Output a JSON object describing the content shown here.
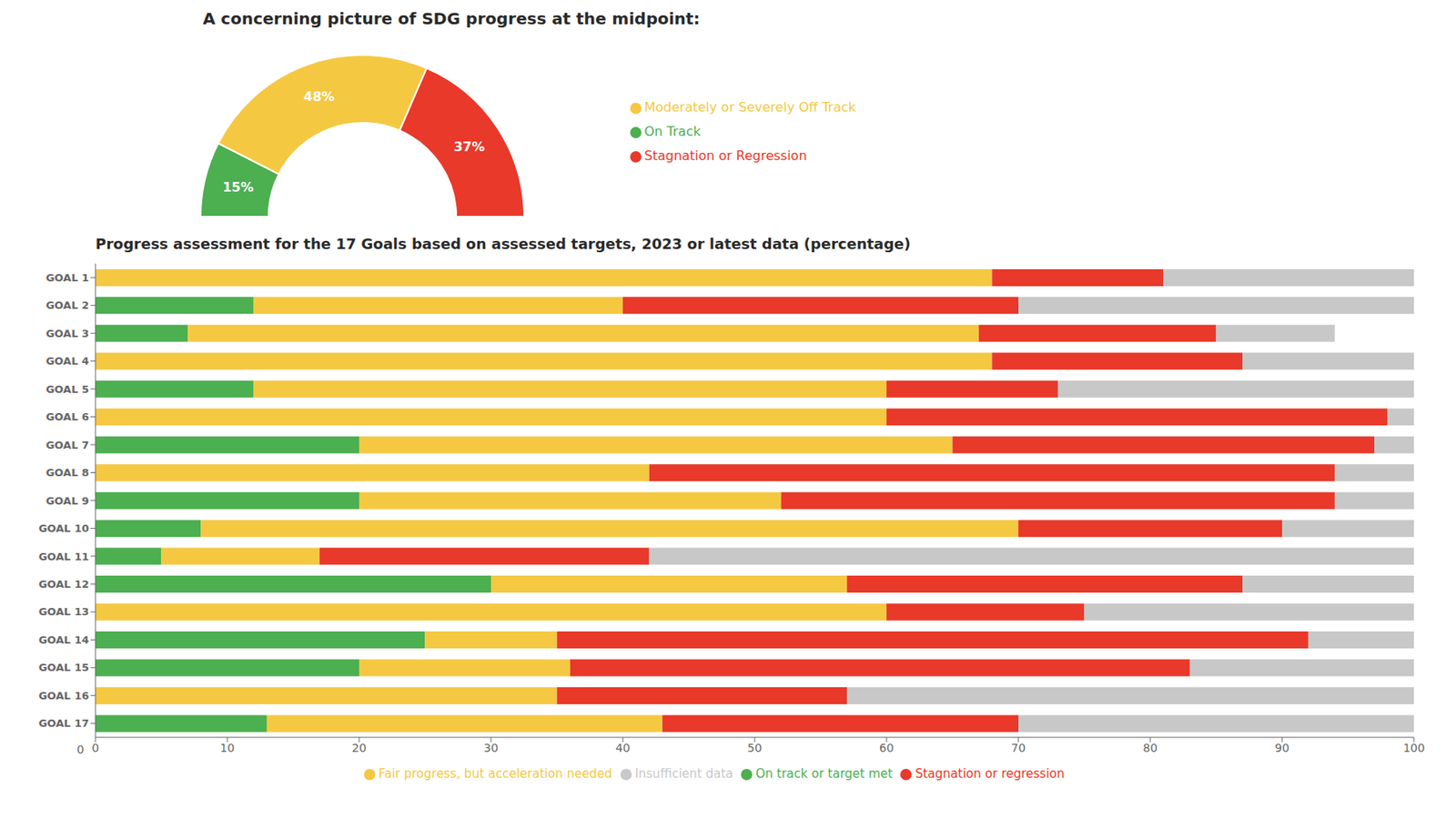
{
  "chart_data": [
    {
      "type": "gauge",
      "title": "A concerning picture of SDG progress at the midpoint:",
      "categories": [
        "On Track",
        "Moderately or Severely Off Track",
        "Stagnation or Regression"
      ],
      "values": [
        15,
        48,
        37
      ],
      "value_labels": [
        "15%",
        "48%",
        "37%"
      ],
      "colors": [
        "#4caf50",
        "#f5c842",
        "#e8392a"
      ],
      "data_labels": true,
      "legend": "right"
    },
    {
      "type": "bar",
      "orientation": "horizontal",
      "stacked": true,
      "title": "Progress assessment for the 17 Goals based on assessed targets, 2023 or latest data (percentage)",
      "categories": [
        "GOAL 1",
        "GOAL 2",
        "GOAL 3",
        "GOAL 4",
        "GOAL 5",
        "GOAL 6",
        "GOAL 7",
        "GOAL 8",
        "GOAL 9",
        "GOAL 10",
        "GOAL 11",
        "GOAL 12",
        "GOAL 13",
        "GOAL 14",
        "GOAL 15",
        "GOAL 16",
        "GOAL 17"
      ],
      "series": [
        {
          "name": "On track or target met",
          "color": "#4caf50",
          "values": [
            0,
            12,
            7,
            0,
            12,
            0,
            20,
            0,
            20,
            8,
            5,
            30,
            0,
            25,
            20,
            0,
            13
          ]
        },
        {
          "name": "Fair progress, but acceleration needed",
          "color": "#f5c842",
          "values": [
            68,
            28,
            60,
            68,
            48,
            60,
            45,
            42,
            32,
            62,
            12,
            27,
            60,
            10,
            16,
            35,
            30
          ]
        },
        {
          "name": "Stagnation or regression",
          "color": "#e8392a",
          "values": [
            13,
            30,
            18,
            19,
            13,
            38,
            32,
            52,
            42,
            20,
            25,
            30,
            15,
            57,
            47,
            22,
            27
          ]
        },
        {
          "name": "Insufficient data",
          "color": "#c8c8c8",
          "values": [
            19,
            30,
            9,
            13,
            27,
            2,
            3,
            6,
            6,
            10,
            58,
            13,
            25,
            8,
            17,
            43,
            30
          ]
        }
      ],
      "xlim": [
        0,
        100
      ],
      "xticks": [
        0,
        10,
        20,
        30,
        40,
        50,
        60,
        70,
        80,
        90,
        100
      ],
      "grid": false,
      "legend": "bottom",
      "annotations": [
        "0"
      ]
    }
  ]
}
